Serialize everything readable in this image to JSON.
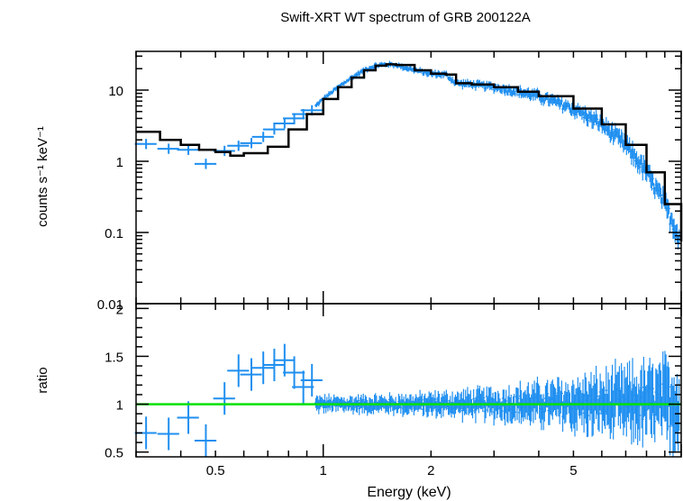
{
  "chart_data": [
    {
      "type": "line",
      "panel": "spectrum",
      "title": "Swift-XRT WT spectrum of GRB 200122A",
      "ylabel": "counts s⁻¹ keV⁻¹",
      "x_scale": "log",
      "y_scale": "log",
      "xlim": [
        0.3,
        10
      ],
      "ylim": [
        0.01,
        35
      ],
      "y_ticks": [
        {
          "value": 10,
          "label": "10"
        },
        {
          "value": 1,
          "label": "1"
        },
        {
          "value": 0.1,
          "label": "0.1"
        },
        {
          "value": 0.01,
          "label": "0.01"
        }
      ],
      "series": [
        {
          "role": "data",
          "color": "#1f8ff0",
          "points": [
            {
              "x": 0.32,
              "y": 1.75
            },
            {
              "x": 0.37,
              "y": 1.5
            },
            {
              "x": 0.42,
              "y": 1.45
            },
            {
              "x": 0.47,
              "y": 0.92
            },
            {
              "x": 0.53,
              "y": 1.4
            },
            {
              "x": 0.58,
              "y": 1.65
            },
            {
              "x": 0.63,
              "y": 1.8
            },
            {
              "x": 0.68,
              "y": 2.2
            },
            {
              "x": 0.73,
              "y": 2.8
            },
            {
              "x": 0.78,
              "y": 3.4
            },
            {
              "x": 0.83,
              "y": 4.0
            },
            {
              "x": 0.88,
              "y": 4.6
            },
            {
              "x": 0.93,
              "y": 5.2
            }
          ],
          "dense_range": [
            0.95,
            9.9
          ]
        },
        {
          "role": "model",
          "color": "#000000",
          "points": [
            {
              "x": 0.3,
              "y": 2.6
            },
            {
              "x": 0.35,
              "y": 2.0
            },
            {
              "x": 0.4,
              "y": 1.7
            },
            {
              "x": 0.45,
              "y": 1.45
            },
            {
              "x": 0.5,
              "y": 1.35
            },
            {
              "x": 0.55,
              "y": 1.2
            },
            {
              "x": 0.6,
              "y": 1.3
            },
            {
              "x": 0.7,
              "y": 1.6
            },
            {
              "x": 0.8,
              "y": 2.8
            },
            {
              "x": 0.9,
              "y": 4.6
            },
            {
              "x": 1.0,
              "y": 7.5
            },
            {
              "x": 1.1,
              "y": 11
            },
            {
              "x": 1.2,
              "y": 15
            },
            {
              "x": 1.3,
              "y": 19
            },
            {
              "x": 1.4,
              "y": 22
            },
            {
              "x": 1.5,
              "y": 23
            },
            {
              "x": 1.6,
              "y": 22.5
            },
            {
              "x": 1.8,
              "y": 19
            },
            {
              "x": 2.0,
              "y": 17
            },
            {
              "x": 2.2,
              "y": 16.5
            },
            {
              "x": 2.35,
              "y": 12.5
            },
            {
              "x": 2.6,
              "y": 12
            },
            {
              "x": 3.0,
              "y": 11
            },
            {
              "x": 3.5,
              "y": 9.5
            },
            {
              "x": 4.0,
              "y": 8.2
            },
            {
              "x": 5.0,
              "y": 5.5
            },
            {
              "x": 6.0,
              "y": 3.3
            },
            {
              "x": 7.0,
              "y": 1.7
            },
            {
              "x": 8.0,
              "y": 0.7
            },
            {
              "x": 9.0,
              "y": 0.25
            },
            {
              "x": 10.0,
              "y": 0.075
            }
          ]
        }
      ]
    },
    {
      "type": "scatter",
      "panel": "ratio",
      "xlabel": "Energy (keV)",
      "ylabel": "ratio",
      "x_scale": "log",
      "xlim": [
        0.3,
        10
      ],
      "ylim": [
        0.45,
        2.05
      ],
      "x_ticks": [
        {
          "value": 0.5,
          "label": "0.5"
        },
        {
          "value": 1,
          "label": "1"
        },
        {
          "value": 2,
          "label": "2"
        },
        {
          "value": 5,
          "label": "5"
        }
      ],
      "y_ticks": [
        {
          "value": 2,
          "label": "2"
        },
        {
          "value": 1.5,
          "label": "1.5"
        },
        {
          "value": 1,
          "label": "1"
        },
        {
          "value": 0.5,
          "label": "0.5"
        }
      ],
      "reference_line": {
        "y": 1,
        "color": "#00e000"
      },
      "series": [
        {
          "role": "data",
          "color": "#1f8ff0",
          "points": [
            {
              "x": 0.32,
              "y": 0.7
            },
            {
              "x": 0.37,
              "y": 0.69
            },
            {
              "x": 0.42,
              "y": 0.86
            },
            {
              "x": 0.47,
              "y": 0.62
            },
            {
              "x": 0.53,
              "y": 1.06
            },
            {
              "x": 0.58,
              "y": 1.35
            },
            {
              "x": 0.63,
              "y": 1.31
            },
            {
              "x": 0.68,
              "y": 1.38
            },
            {
              "x": 0.73,
              "y": 1.41
            },
            {
              "x": 0.78,
              "y": 1.46
            },
            {
              "x": 0.83,
              "y": 1.33
            },
            {
              "x": 0.88,
              "y": 1.18
            },
            {
              "x": 0.93,
              "y": 1.25
            }
          ],
          "dense_range": [
            0.95,
            9.9
          ]
        }
      ]
    }
  ]
}
